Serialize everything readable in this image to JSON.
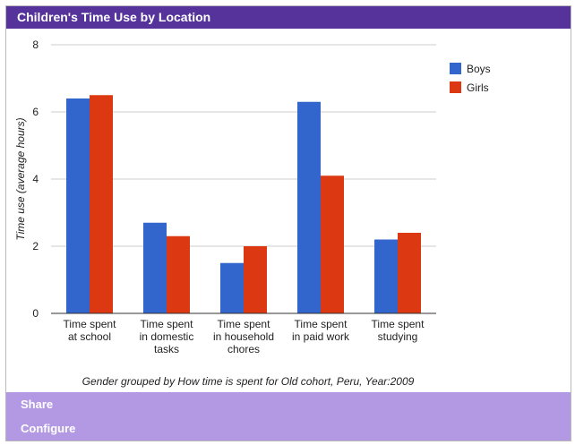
{
  "window": {
    "title": "Children's Time Use by Location"
  },
  "sections": {
    "share_label": "Share",
    "configure_label": "Configure"
  },
  "colors": {
    "header": "#55339a",
    "section": "#b399e4",
    "boys": "#3366cc",
    "girls": "#dc3912",
    "grid": "#cccccc"
  },
  "chart_data": {
    "type": "bar",
    "title": "",
    "xlabel": "Gender grouped by How time is spent for Old cohort, Peru, Year:2009",
    "ylabel": "Time use (average hours)",
    "ylim": [
      0,
      8
    ],
    "yticks": [
      0,
      2,
      4,
      6,
      8
    ],
    "grid": true,
    "legend_position": "right",
    "categories": [
      [
        "Time spent",
        "at school"
      ],
      [
        "Time spent",
        "in domestic",
        "tasks"
      ],
      [
        "Time spent",
        "in household",
        "chores"
      ],
      [
        "Time spent",
        "in paid work"
      ],
      [
        "Time spent",
        "studying"
      ]
    ],
    "series": [
      {
        "name": "Boys",
        "color": "#3366cc",
        "values": [
          6.4,
          2.7,
          1.5,
          6.3,
          2.2
        ]
      },
      {
        "name": "Girls",
        "color": "#dc3912",
        "values": [
          6.5,
          2.3,
          2.0,
          4.1,
          2.4
        ]
      }
    ]
  }
}
